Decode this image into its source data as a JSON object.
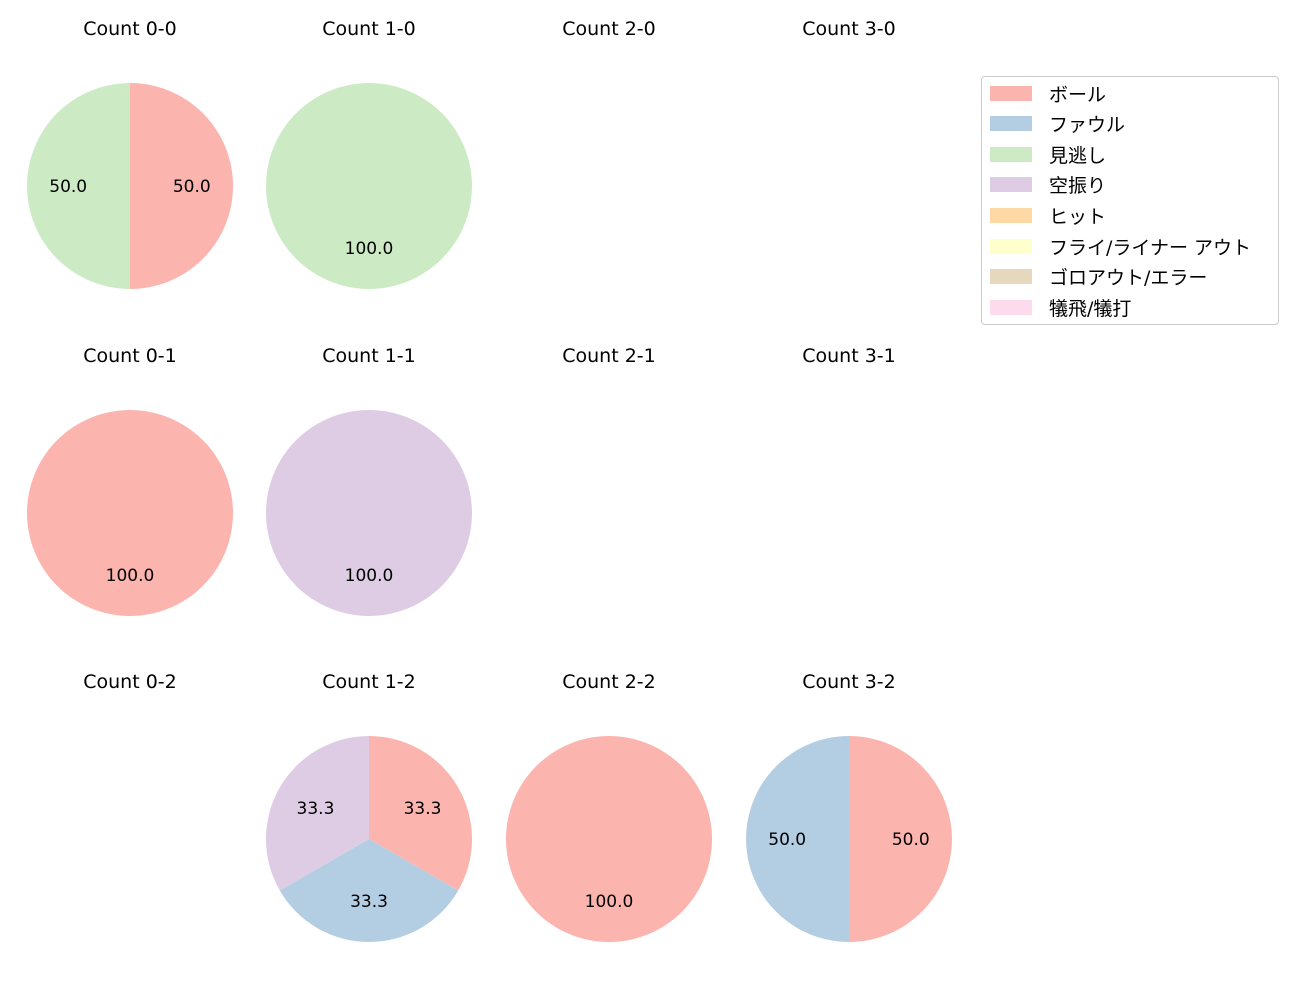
{
  "colors": {
    "ボール": "#fbb4ae",
    "ファウル": "#b3cde3",
    "見逃し": "#ccebc5",
    "空振り": "#decbe4",
    "ヒット": "#fed9a6",
    "フライ/ライナー アウト": "#ffffcc",
    "ゴロアウト/エラー": "#e5d8bd",
    "犠飛/犠打": "#fddaec"
  },
  "legend": {
    "items": [
      "ボール",
      "ファウル",
      "見逃し",
      "空振り",
      "ヒット",
      "フライ/ライナー アウト",
      "ゴロアウト/エラー",
      "犠飛/犠打"
    ]
  },
  "chart_data": [
    {
      "type": "pie",
      "title": "Count 0-0",
      "slices": [
        {
          "category": "ボール",
          "value": 50.0
        },
        {
          "category": "見逃し",
          "value": 50.0
        }
      ]
    },
    {
      "type": "pie",
      "title": "Count 1-0",
      "slices": [
        {
          "category": "見逃し",
          "value": 100.0
        }
      ]
    },
    {
      "type": "pie",
      "title": "Count 2-0",
      "slices": []
    },
    {
      "type": "pie",
      "title": "Count 3-0",
      "slices": []
    },
    {
      "type": "pie",
      "title": "Count 0-1",
      "slices": [
        {
          "category": "ボール",
          "value": 100.0
        }
      ]
    },
    {
      "type": "pie",
      "title": "Count 1-1",
      "slices": [
        {
          "category": "空振り",
          "value": 100.0
        }
      ]
    },
    {
      "type": "pie",
      "title": "Count 2-1",
      "slices": []
    },
    {
      "type": "pie",
      "title": "Count 3-1",
      "slices": []
    },
    {
      "type": "pie",
      "title": "Count 0-2",
      "slices": []
    },
    {
      "type": "pie",
      "title": "Count 1-2",
      "slices": [
        {
          "category": "ボール",
          "value": 33.3
        },
        {
          "category": "ファウル",
          "value": 33.3
        },
        {
          "category": "空振り",
          "value": 33.3
        }
      ]
    },
    {
      "type": "pie",
      "title": "Count 2-2",
      "slices": [
        {
          "category": "ボール",
          "value": 100.0
        }
      ]
    },
    {
      "type": "pie",
      "title": "Count 3-2",
      "slices": [
        {
          "category": "ボール",
          "value": 50.0
        },
        {
          "category": "ファウル",
          "value": 50.0
        }
      ]
    }
  ]
}
